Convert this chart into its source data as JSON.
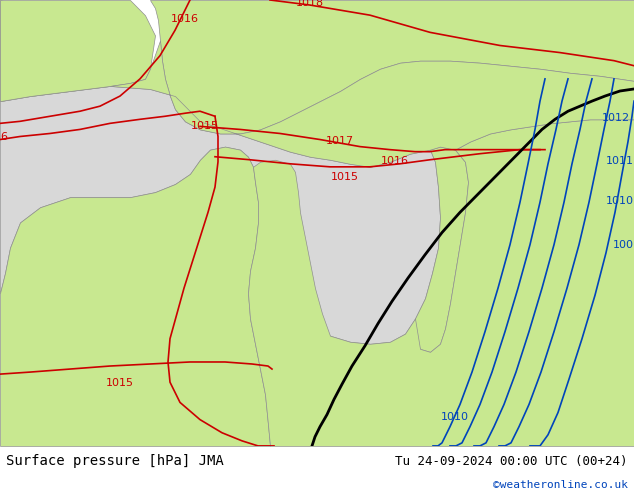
{
  "title_left": "Surface pressure [hPa] JMA",
  "title_right": "Tu 24-09-2024 00:00 UTC (00+24)",
  "copyright": "©weatheronline.co.uk",
  "bg_color": "#b4e47a",
  "sea_color": "#d8d8d8",
  "land_color": "#c8e890",
  "coast_color": "#909090",
  "red_color": "#cc0000",
  "blue_color": "#0044bb",
  "black_color": "#000000",
  "bar_color": "#ffffff",
  "text_color": "#000000",
  "copy_color": "#0044bb",
  "fig_width": 6.34,
  "fig_height": 4.9,
  "dpi": 100
}
